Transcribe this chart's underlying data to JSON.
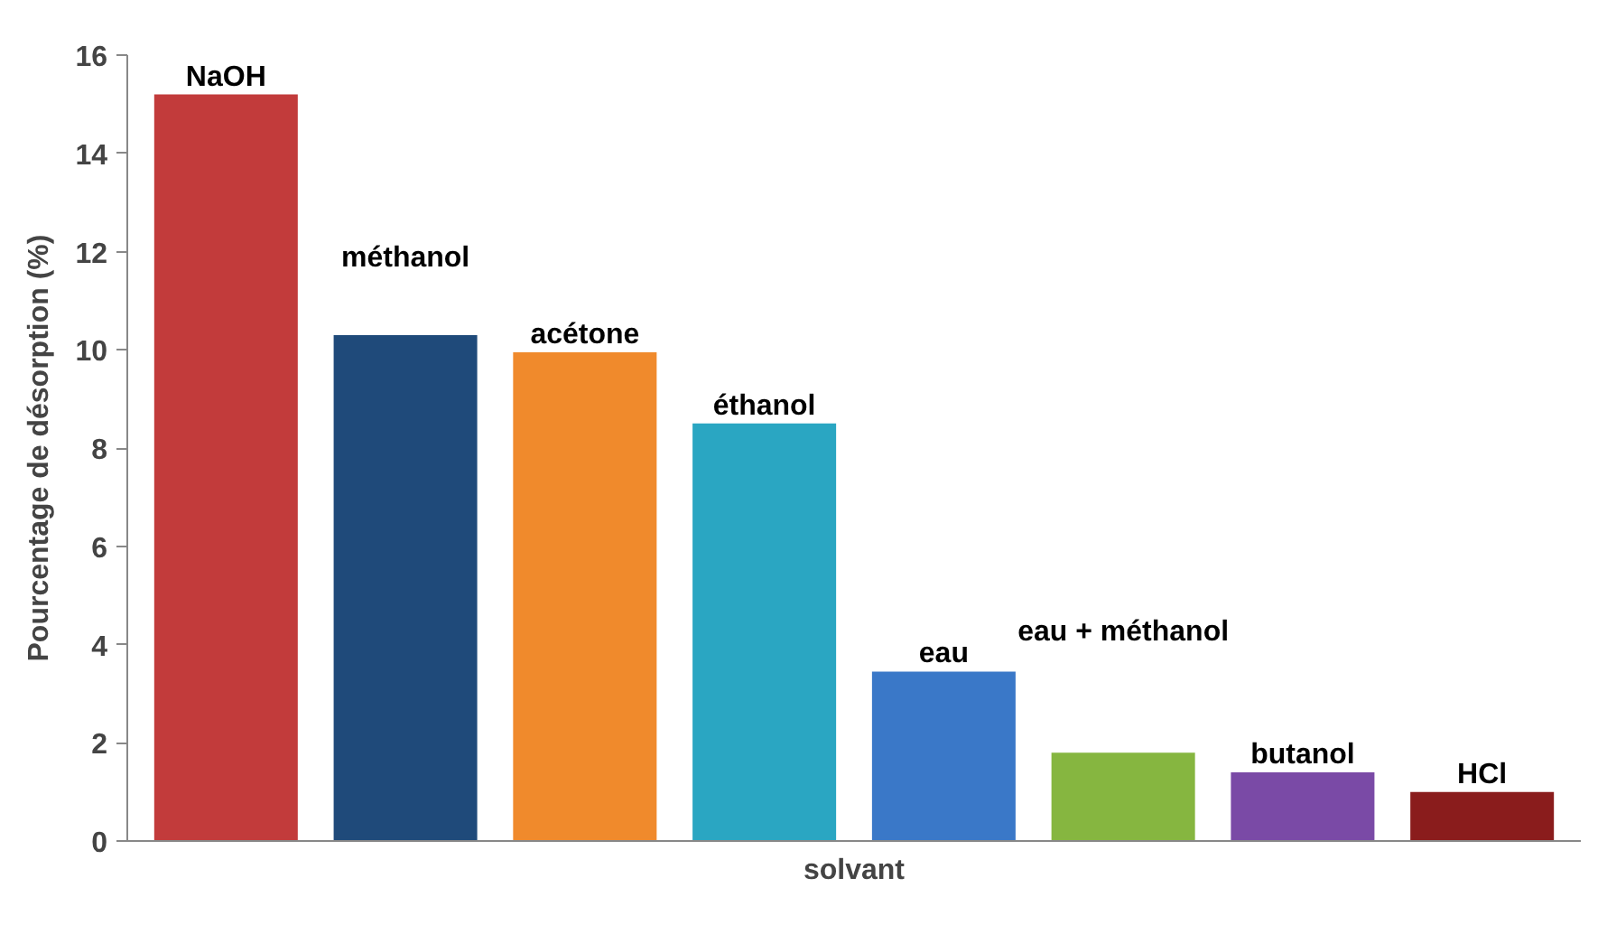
{
  "chart_data": {
    "type": "bar",
    "xlabel": "solvant",
    "ylabel": "Pourcentage de désorption (%)",
    "categories": [
      "NaOH",
      "méthanol",
      "acétone",
      "éthanol",
      "eau",
      "eau + méthanol",
      "butanol",
      "HCl"
    ],
    "values": [
      15.2,
      10.3,
      9.95,
      8.5,
      3.45,
      1.8,
      1.4,
      1.0
    ],
    "colors": [
      "#c23b3b",
      "#1f4a7a",
      "#f08a2c",
      "#2aa6c2",
      "#3a78c8",
      "#86b640",
      "#7a4aa6",
      "#8a1c1c"
    ],
    "ylim": [
      0,
      16
    ],
    "yticks": [
      0,
      2,
      4,
      6,
      8,
      10,
      12,
      14,
      16
    ],
    "grid": false
  }
}
